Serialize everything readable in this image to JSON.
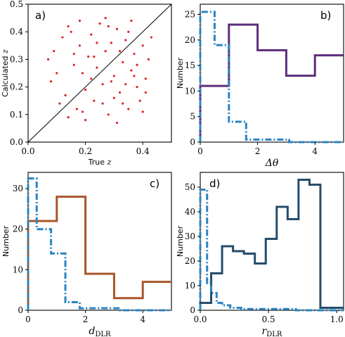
{
  "chart_data": [
    {
      "type": "scatter",
      "panel_tag": "a)",
      "xlabel_main": "True",
      "xlabel_sym": "z",
      "ylabel_main": "Calculated",
      "ylabel_sym": "z",
      "xlim": [
        0.0,
        0.5
      ],
      "ylim": [
        0.0,
        0.5
      ],
      "xticks": [
        0.0,
        0.2,
        0.4
      ],
      "xtick_labels": [
        "0.0",
        "0.2",
        "0.4"
      ],
      "yticks": [
        0.0,
        0.1,
        0.2,
        0.3,
        0.4,
        0.5
      ],
      "ytick_labels": [
        "0.0",
        "0.1",
        "0.2",
        "0.3",
        "0.4",
        "0.5"
      ],
      "identity_line": [
        [
          0.0,
          0.0
        ],
        [
          0.5,
          0.5
        ]
      ],
      "point_color": "#d62728",
      "points": [
        [
          0.07,
          0.3
        ],
        [
          0.08,
          0.22
        ],
        [
          0.09,
          0.33
        ],
        [
          0.12,
          0.38
        ],
        [
          0.13,
          0.17
        ],
        [
          0.14,
          0.42
        ],
        [
          0.15,
          0.4
        ],
        [
          0.16,
          0.28
        ],
        [
          0.17,
          0.12
        ],
        [
          0.18,
          0.35
        ],
        [
          0.19,
          0.25
        ],
        [
          0.2,
          0.19
        ],
        [
          0.21,
          0.31
        ],
        [
          0.22,
          0.39
        ],
        [
          0.23,
          0.15
        ],
        [
          0.24,
          0.27
        ],
        [
          0.25,
          0.43
        ],
        [
          0.26,
          0.21
        ],
        [
          0.27,
          0.33
        ],
        [
          0.28,
          0.1
        ],
        [
          0.29,
          0.36
        ],
        [
          0.3,
          0.24
        ],
        [
          0.31,
          0.41
        ],
        [
          0.32,
          0.18
        ],
        [
          0.33,
          0.29
        ],
        [
          0.34,
          0.37
        ],
        [
          0.35,
          0.12
        ],
        [
          0.36,
          0.26
        ],
        [
          0.37,
          0.32
        ],
        [
          0.38,
          0.2
        ],
        [
          0.39,
          0.15
        ],
        [
          0.4,
          0.35
        ],
        [
          0.41,
          0.23
        ],
        [
          0.42,
          0.3
        ],
        [
          0.43,
          0.38
        ],
        [
          0.1,
          0.25
        ],
        [
          0.11,
          0.14
        ],
        [
          0.14,
          0.09
        ],
        [
          0.16,
          0.32
        ],
        [
          0.18,
          0.44
        ],
        [
          0.2,
          0.08
        ],
        [
          0.22,
          0.23
        ],
        [
          0.24,
          0.36
        ],
        [
          0.26,
          0.14
        ],
        [
          0.28,
          0.42
        ],
        [
          0.3,
          0.16
        ],
        [
          0.32,
          0.33
        ],
        [
          0.34,
          0.21
        ],
        [
          0.36,
          0.44
        ],
        [
          0.38,
          0.28
        ],
        [
          0.4,
          0.11
        ],
        [
          0.27,
          0.45
        ],
        [
          0.31,
          0.07
        ],
        [
          0.35,
          0.4
        ],
        [
          0.19,
          0.11
        ],
        [
          0.23,
          0.31
        ],
        [
          0.29,
          0.22
        ],
        [
          0.33,
          0.14
        ],
        [
          0.37,
          0.24
        ],
        [
          0.41,
          0.18
        ]
      ]
    },
    {
      "type": "histogram-step",
      "panel_tag": "b)",
      "xlabel": "Δθ",
      "ylabel": "Number",
      "xlim": [
        0,
        5
      ],
      "ylim": [
        0,
        27
      ],
      "xticks": [
        0,
        2,
        4
      ],
      "xtick_labels": [
        "0",
        "2",
        "4"
      ],
      "yticks": [
        0,
        5,
        10,
        15,
        20,
        25
      ],
      "ytick_labels": [
        "0",
        "5",
        "10",
        "15",
        "20",
        "25"
      ],
      "series": [
        {
          "color": "#5c2d7a",
          "style": "solid",
          "edges": [
            0,
            1,
            2,
            3,
            4,
            5
          ],
          "counts": [
            11,
            23,
            18,
            13,
            17
          ]
        },
        {
          "color": "#2b84c2",
          "style": "dashdot",
          "edges": [
            0,
            0.5,
            1,
            1.6,
            2.6,
            3.1,
            3.6,
            5
          ],
          "counts": [
            25.5,
            19,
            4,
            0.5,
            0.5,
            0,
            0
          ]
        }
      ]
    },
    {
      "type": "histogram-step",
      "panel_tag": "c)",
      "xlabel_sym": "d",
      "xlabel_sub": "DLR",
      "ylabel": "Number",
      "xlim": [
        0,
        5
      ],
      "ylim": [
        0,
        34
      ],
      "xticks": [
        0,
        2,
        4
      ],
      "xtick_labels": [
        "0",
        "2",
        "4"
      ],
      "yticks": [
        0,
        10,
        20,
        30
      ],
      "ytick_labels": [
        "0",
        "10",
        "20",
        "30"
      ],
      "series": [
        {
          "color": "#a8552b",
          "style": "solid",
          "edges": [
            0,
            1,
            2,
            3,
            4,
            5
          ],
          "counts": [
            22,
            28,
            9,
            3,
            7
          ]
        },
        {
          "color": "#2b84c2",
          "style": "dashdot",
          "edges": [
            0,
            0.3,
            0.8,
            1.3,
            1.8,
            2.5,
            3.2,
            4.2,
            5
          ],
          "counts": [
            32.5,
            20,
            14,
            2,
            0.5,
            0.5,
            0,
            0
          ]
        }
      ]
    },
    {
      "type": "histogram-step",
      "panel_tag": "d)",
      "xlabel_sym": "r",
      "xlabel_sub": "DLR",
      "ylabel": "Number",
      "xlim": [
        0,
        1.05
      ],
      "ylim": [
        0,
        56
      ],
      "xticks": [
        0.0,
        0.5,
        1.0
      ],
      "xtick_labels": [
        "0.0",
        "0.5",
        "1.0"
      ],
      "yticks": [
        0,
        10,
        20,
        30,
        40,
        50
      ],
      "ytick_labels": [
        "0",
        "10",
        "20",
        "30",
        "40",
        "50"
      ],
      "series": [
        {
          "color": "#244d6b",
          "style": "solid",
          "edges": [
            0,
            0.08,
            0.16,
            0.24,
            0.32,
            0.4,
            0.48,
            0.56,
            0.64,
            0.72,
            0.8,
            0.88,
            0.96,
            1.05
          ],
          "counts": [
            3,
            15,
            26,
            24,
            23,
            19,
            29,
            42,
            37,
            53,
            51,
            1,
            1
          ]
        },
        {
          "color": "#2b84c2",
          "style": "dashdot",
          "edges": [
            0,
            0.05,
            0.08,
            0.12,
            0.16,
            0.22,
            0.3,
            0.4,
            0.55,
            0.7,
            0.85,
            1.05
          ],
          "counts": [
            49,
            11,
            7,
            3,
            2,
            1,
            0.5,
            0.5,
            0.5,
            0,
            0
          ]
        }
      ]
    }
  ]
}
